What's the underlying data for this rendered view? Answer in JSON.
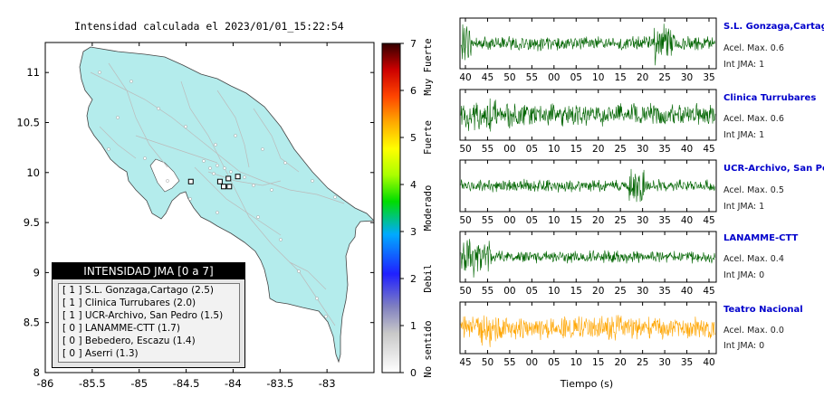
{
  "map_title": "Intensidad calculada el 2023/01/01_15:22:54",
  "map_axes": {
    "x_ticks": [
      "-86",
      "-85.5",
      "-85",
      "-84.5",
      "-84",
      "-83.5",
      "-83"
    ],
    "y_ticks": [
      "11",
      "10.5",
      "10",
      "9.5",
      "9",
      "8.5",
      "8"
    ]
  },
  "legend": {
    "title": "INTENSIDAD JMA [0 a 7]",
    "items": [
      "[ 1 ]  S.L. Gonzaga,Cartago (2.5)",
      "[ 1 ]  Clinica Turrubares (2.0)",
      "[ 1 ]  UCR-Archivo, San Pedro (1.5)",
      "[ 0 ]  LANAMME-CTT (1.7)",
      "[ 0 ]  Bebedero, Escazu (1.4)",
      "[ 0 ]  Aserri (1.3)"
    ]
  },
  "colorbar": {
    "ticks": [
      "0",
      "1",
      "2",
      "3",
      "4",
      "5",
      "6",
      "7"
    ],
    "labels": [
      "No sentido",
      "Debil",
      "Moderado",
      "Fuerte",
      "Muy Fuerte"
    ]
  },
  "traces": {
    "xlabel": "Tiempo (s)",
    "stations": [
      {
        "name": "S.L. Gonzaga,Cartago",
        "acc": "Acel. Max. 0.6",
        "jma": "Int JMA: 1",
        "color": "#006400",
        "ticks": [
          "40",
          "45",
          "50",
          "55",
          "00",
          "05",
          "10",
          "15",
          "20",
          "25",
          "30",
          "35"
        ]
      },
      {
        "name": "Clinica Turrubares",
        "acc": "Acel. Max. 0.6",
        "jma": "Int JMA: 1",
        "color": "#006400",
        "ticks": [
          "50",
          "55",
          "00",
          "05",
          "10",
          "15",
          "20",
          "25",
          "30",
          "35",
          "40",
          "45"
        ]
      },
      {
        "name": "UCR-Archivo, San Pedro",
        "acc": "Acel. Max. 0.5",
        "jma": "Int JMA: 1",
        "color": "#006400",
        "ticks": [
          "50",
          "55",
          "00",
          "05",
          "10",
          "15",
          "20",
          "25",
          "30",
          "35",
          "40",
          "45"
        ]
      },
      {
        "name": "LANAMME-CTT",
        "acc": "Acel. Max. 0.4",
        "jma": "Int JMA: 0",
        "color": "#006400",
        "ticks": [
          "50",
          "55",
          "00",
          "05",
          "10",
          "15",
          "20",
          "25",
          "30",
          "35",
          "40",
          "45"
        ]
      },
      {
        "name": "Teatro Nacional",
        "acc": "Acel. Max. 0.0",
        "jma": "Int JMA: 0",
        "color": "#ffa500",
        "ticks": [
          "45",
          "50",
          "55",
          "00",
          "05",
          "10",
          "15",
          "20",
          "25",
          "30",
          "35",
          "40"
        ]
      }
    ]
  },
  "chart_data": [
    {
      "type": "scatter",
      "title": "Intensidad calculada el 2023/01/01_15:22:54",
      "xlim": [
        -86,
        -82.5
      ],
      "ylim": [
        8,
        11.3
      ],
      "legend_placement": "bottom-left",
      "series": [
        {
          "name": "S.L. Gonzaga,Cartago",
          "x": [
            -83.95
          ],
          "y": [
            9.96
          ],
          "value": 2.5
        },
        {
          "name": "Clinica Turrubares",
          "x": [
            -84.45
          ],
          "y": [
            9.91
          ],
          "value": 2.0
        },
        {
          "name": "UCR-Archivo, San Pedro",
          "x": [
            -84.05
          ],
          "y": [
            9.94
          ],
          "value": 1.5
        },
        {
          "name": "LANAMME-CTT",
          "x": [
            -84.04
          ],
          "y": [
            9.86
          ],
          "value": 1.7
        },
        {
          "name": "Bebedero, Escazu",
          "x": [
            -84.14
          ],
          "y": [
            9.91
          ],
          "value": 1.4
        },
        {
          "name": "Aserri",
          "x": [
            -84.1
          ],
          "y": [
            9.86
          ],
          "value": 1.3
        }
      ]
    },
    {
      "type": "line",
      "xlabel": "Tiempo (s)",
      "series": [
        {
          "name": "S.L. Gonzaga,Cartago",
          "peak": 0.6
        },
        {
          "name": "Clinica Turrubares",
          "peak": 0.6
        },
        {
          "name": "UCR-Archivo, San Pedro",
          "peak": 0.5
        },
        {
          "name": "LANAMME-CTT",
          "peak": 0.4
        },
        {
          "name": "Teatro Nacional",
          "peak": 0.0
        }
      ]
    }
  ]
}
